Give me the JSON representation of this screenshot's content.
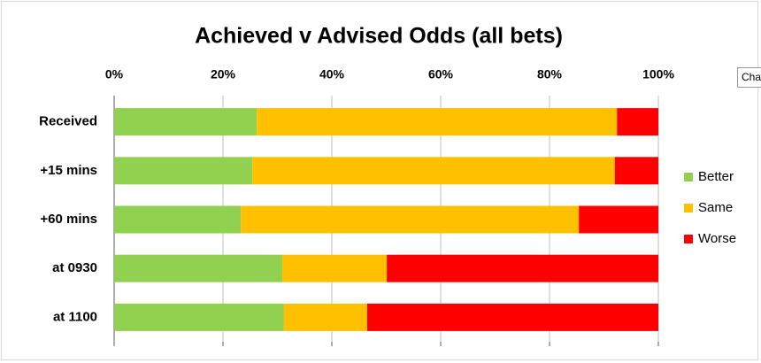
{
  "chart_data": {
    "type": "bar",
    "orientation": "horizontal",
    "stacked": true,
    "title": "Achieved v Advised Odds (all bets)",
    "categories": [
      "Received",
      "+15 mins",
      "+60 mins",
      "at 0930",
      "at 1100"
    ],
    "series": [
      {
        "name": "Better",
        "color": "#92d050",
        "values": [
          26.2,
          25.4,
          23.3,
          30.9,
          31.2
        ]
      },
      {
        "name": "Same",
        "color": "#ffc000",
        "values": [
          66.2,
          66.6,
          62.1,
          19.2,
          15.3
        ]
      },
      {
        "name": "Worse",
        "color": "#ff0000",
        "values": [
          7.6,
          8.0,
          14.6,
          49.9,
          53.5
        ]
      }
    ],
    "xlim": [
      0,
      100
    ],
    "xticks": [
      {
        "value": 0,
        "label": "0%"
      },
      {
        "value": 20,
        "label": "20%"
      },
      {
        "value": 40,
        "label": "40%"
      },
      {
        "value": 60,
        "label": "60%"
      },
      {
        "value": 80,
        "label": "80%"
      },
      {
        "value": 100,
        "label": "100%"
      }
    ],
    "grid": true,
    "legend": "right"
  },
  "tooltip": "Cha"
}
